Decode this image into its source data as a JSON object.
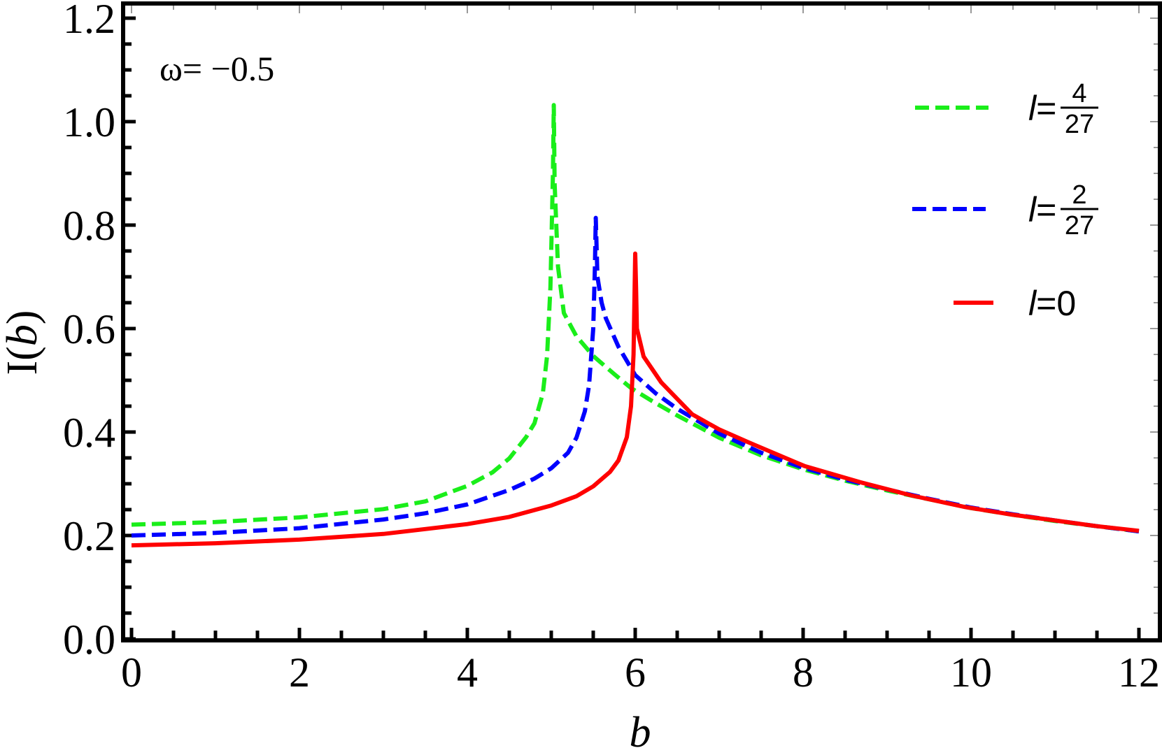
{
  "chart_data": {
    "type": "line",
    "xlabel": "b",
    "ylabel": "I(b)",
    "annotation": "ω= −0.5",
    "xlim": [
      -0.1,
      12.25
    ],
    "ylim": [
      0,
      1.228
    ],
    "x_ticks": [
      "0",
      "2",
      "4",
      "6",
      "8",
      "10",
      "12"
    ],
    "y_ticks": [
      "0.0",
      "0.2",
      "0.4",
      "0.6",
      "0.8",
      "1.0",
      "1.2"
    ],
    "grid": false,
    "legend_position": "top-right",
    "series": [
      {
        "legend": {
          "prefix": "l=",
          "numerator": "4",
          "denominator": "27"
        },
        "color": "#1aee1a",
        "style": "dashed",
        "points": [
          [
            0,
            0.221
          ],
          [
            1,
            0.226
          ],
          [
            2,
            0.235
          ],
          [
            3,
            0.251
          ],
          [
            3.5,
            0.266
          ],
          [
            4,
            0.296
          ],
          [
            4.3,
            0.322
          ],
          [
            4.5,
            0.349
          ],
          [
            4.7,
            0.39
          ],
          [
            4.8,
            0.417
          ],
          [
            4.9,
            0.475
          ],
          [
            4.95,
            0.547
          ],
          [
            4.99,
            0.68
          ],
          [
            5.02,
            0.9
          ],
          [
            5.03,
            1.032
          ],
          [
            5.04,
            0.88
          ],
          [
            5.08,
            0.72
          ],
          [
            5.15,
            0.63
          ],
          [
            5.3,
            0.585
          ],
          [
            5.5,
            0.547
          ],
          [
            5.75,
            0.512
          ],
          [
            5.95,
            0.485
          ],
          [
            6.2,
            0.46
          ],
          [
            6.5,
            0.432
          ],
          [
            7,
            0.389
          ],
          [
            7.5,
            0.355
          ],
          [
            8,
            0.328
          ],
          [
            8.5,
            0.306
          ],
          [
            9,
            0.287
          ],
          [
            9.5,
            0.27
          ],
          [
            10,
            0.253
          ],
          [
            10.5,
            0.24
          ],
          [
            11,
            0.228
          ],
          [
            11.5,
            0.218
          ],
          [
            12,
            0.208
          ]
        ]
      },
      {
        "legend": {
          "prefix": "l=",
          "numerator": "2",
          "denominator": "27"
        },
        "color": "#0000ff",
        "style": "dashed",
        "points": [
          [
            0,
            0.2
          ],
          [
            1,
            0.205
          ],
          [
            2,
            0.214
          ],
          [
            3,
            0.231
          ],
          [
            3.5,
            0.243
          ],
          [
            4,
            0.26
          ],
          [
            4.5,
            0.288
          ],
          [
            4.8,
            0.31
          ],
          [
            5,
            0.33
          ],
          [
            5.2,
            0.36
          ],
          [
            5.3,
            0.389
          ],
          [
            5.4,
            0.44
          ],
          [
            5.45,
            0.49
          ],
          [
            5.5,
            0.6
          ],
          [
            5.52,
            0.72
          ],
          [
            5.53,
            0.814
          ],
          [
            5.55,
            0.7
          ],
          [
            5.6,
            0.65
          ],
          [
            5.65,
            0.62
          ],
          [
            5.8,
            0.565
          ],
          [
            6,
            0.51
          ],
          [
            6.25,
            0.474
          ],
          [
            6.5,
            0.445
          ],
          [
            7,
            0.397
          ],
          [
            7.5,
            0.36
          ],
          [
            8,
            0.331
          ],
          [
            8.5,
            0.308
          ],
          [
            9,
            0.289
          ],
          [
            9.5,
            0.271
          ],
          [
            10,
            0.254
          ],
          [
            10.5,
            0.241
          ],
          [
            11,
            0.229
          ],
          [
            11.5,
            0.218
          ],
          [
            12,
            0.208
          ]
        ]
      },
      {
        "legend": {
          "prefix": "l=",
          "numerator": "",
          "denominator": "",
          "value": "0"
        },
        "color": "#ff0000",
        "style": "solid",
        "points": [
          [
            0,
            0.181
          ],
          [
            1,
            0.185
          ],
          [
            2,
            0.192
          ],
          [
            3,
            0.203
          ],
          [
            4,
            0.222
          ],
          [
            4.5,
            0.236
          ],
          [
            5,
            0.258
          ],
          [
            5.3,
            0.276
          ],
          [
            5.5,
            0.295
          ],
          [
            5.7,
            0.323
          ],
          [
            5.8,
            0.345
          ],
          [
            5.9,
            0.39
          ],
          [
            5.95,
            0.45
          ],
          [
            5.98,
            0.55
          ],
          [
            6,
            0.745
          ],
          [
            6.01,
            0.68
          ],
          [
            6.02,
            0.6
          ],
          [
            6.1,
            0.546
          ],
          [
            6.31,
            0.496
          ],
          [
            6.68,
            0.434
          ],
          [
            7,
            0.405
          ],
          [
            7.35,
            0.38
          ],
          [
            8.02,
            0.334
          ],
          [
            8.68,
            0.303
          ],
          [
            9.3,
            0.277
          ],
          [
            9.93,
            0.255
          ],
          [
            10.5,
            0.24
          ],
          [
            11,
            0.229
          ],
          [
            11.5,
            0.218
          ],
          [
            12,
            0.209
          ]
        ]
      }
    ]
  }
}
